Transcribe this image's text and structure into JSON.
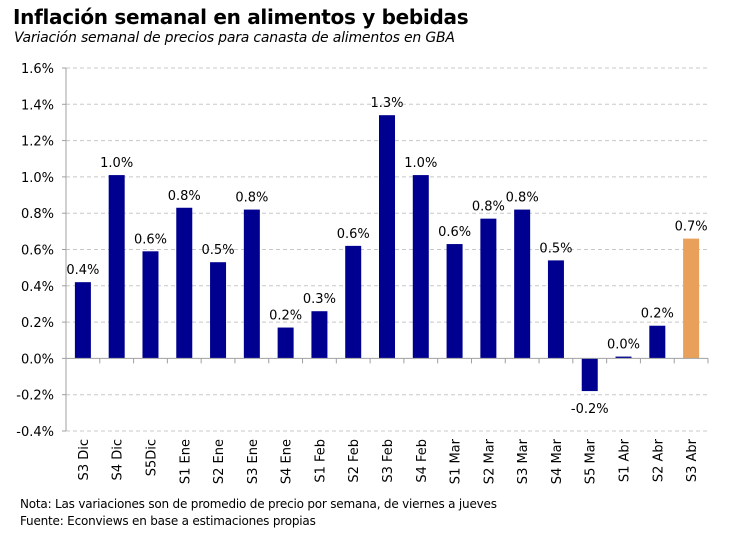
{
  "chart_data": {
    "type": "bar",
    "title": "Inflación semanal en alimentos y bebidas",
    "subtitle": "Variación semanal de precios para canasta de alimentos en GBA",
    "xlabel": "",
    "ylabel": "",
    "ylim": [
      -0.4,
      1.6
    ],
    "yticks": [
      -0.4,
      -0.2,
      0.0,
      0.2,
      0.4,
      0.6,
      0.8,
      1.0,
      1.2,
      1.4,
      1.6
    ],
    "ytick_labels": [
      "-0.4%",
      "-0.2%",
      "0.0%",
      "0.2%",
      "0.4%",
      "0.6%",
      "0.8%",
      "1.0%",
      "1.2%",
      "1.4%",
      "1.6%"
    ],
    "grid": true,
    "legend": "none",
    "categories": [
      "S3 Dic",
      "S4 Dic",
      "S5Dic",
      "S1 Ene",
      "S2 Ene",
      "S3 Ene",
      "S4 Ene",
      "S1 Feb",
      "S2 Feb",
      "S3 Feb",
      "S4 Feb",
      "S1 Mar",
      "S2 Mar",
      "S3 Mar",
      "S4 Mar",
      "S5 Mar",
      "S1 Abr",
      "S2 Abr",
      "S3 Abr"
    ],
    "values": [
      0.42,
      1.01,
      0.59,
      0.83,
      0.53,
      0.82,
      0.17,
      0.26,
      0.62,
      1.34,
      1.01,
      0.63,
      0.77,
      0.82,
      0.54,
      -0.18,
      0.01,
      0.18,
      0.66
    ],
    "data_labels": [
      "0.4%",
      "1.0%",
      "0.6%",
      "0.8%",
      "0.5%",
      "0.8%",
      "0.2%",
      "0.3%",
      "0.6%",
      "1.3%",
      "1.0%",
      "0.6%",
      "0.8%",
      "0.8%",
      "0.5%",
      "-0.2%",
      "0.0%",
      "0.2%",
      "0.7%"
    ],
    "highlight_index": 18,
    "colors": {
      "bar": "#000090",
      "highlight": "#E8A05A",
      "grid": "#c8c8c8",
      "axis": "#a0a0a0"
    }
  },
  "footer": {
    "note": "Nota: Las variaciones son de promedio de precio por semana, de viernes a jueves",
    "source": "Fuente: Econviews en base a estimaciones propias"
  }
}
